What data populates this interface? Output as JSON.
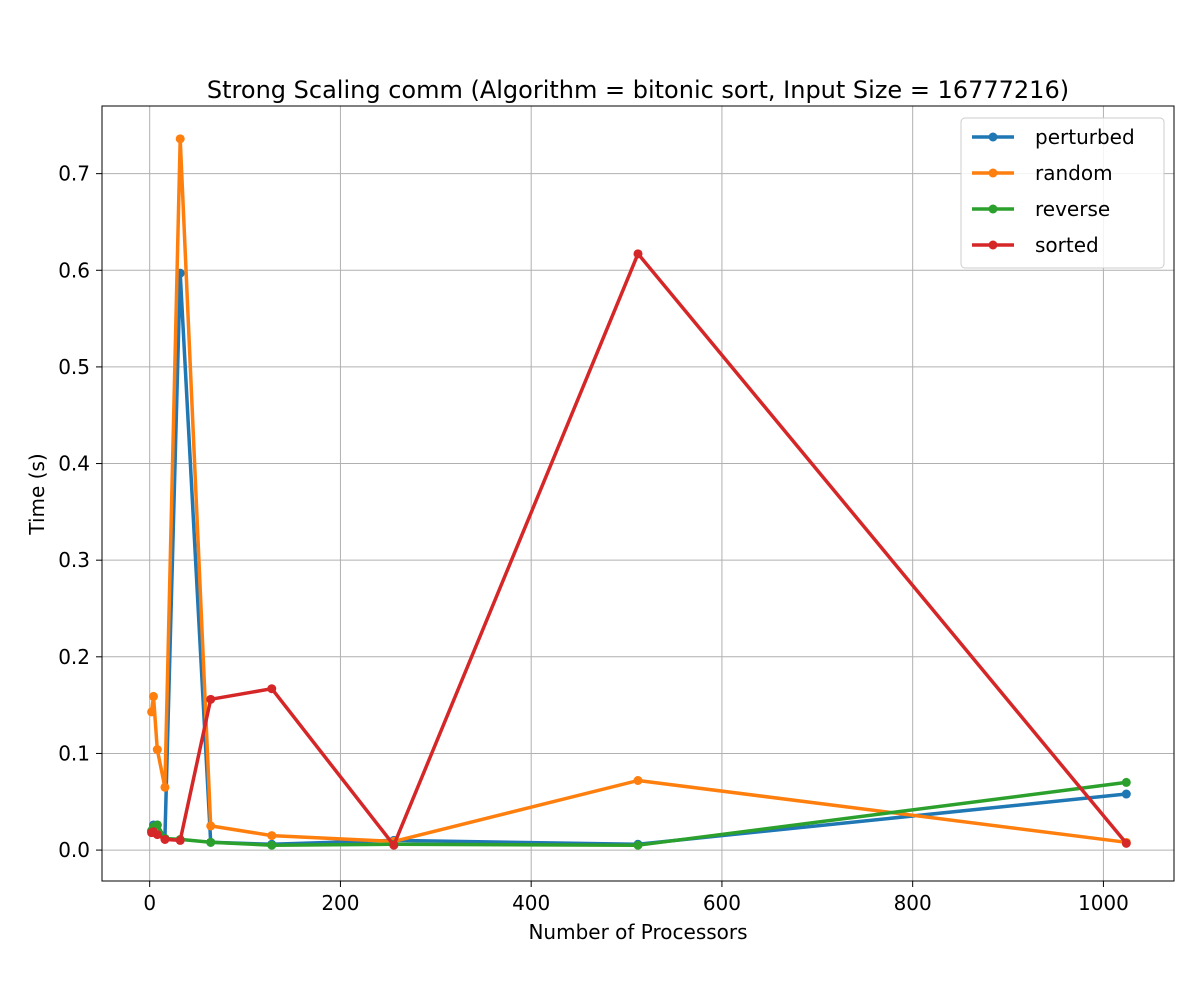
{
  "chart_data": {
    "type": "line",
    "title": "Strong Scaling comm (Algorithm = bitonic sort, Input Size = 16777216)",
    "xlabel": "Number of Processors",
    "ylabel": "Time (s)",
    "xlim": [
      -50,
      1074
    ],
    "ylim": [
      -0.032,
      0.77
    ],
    "xticks": [
      0,
      200,
      400,
      600,
      800,
      1000
    ],
    "yticks": [
      0.0,
      0.1,
      0.2,
      0.3,
      0.4,
      0.5,
      0.6,
      0.7
    ],
    "grid": true,
    "legend_position": "top-right",
    "series": [
      {
        "name": "perturbed",
        "color": "#1f77b4",
        "x": [
          2,
          4,
          8,
          16,
          32,
          64,
          128,
          256,
          512,
          1024
        ],
        "y": [
          0.02,
          0.026,
          0.026,
          0.012,
          0.597,
          0.008,
          0.006,
          0.01,
          0.006,
          0.058
        ]
      },
      {
        "name": "random",
        "color": "#ff7f0e",
        "x": [
          2,
          4,
          8,
          16,
          32,
          64,
          128,
          256,
          512,
          1024
        ],
        "y": [
          0.143,
          0.159,
          0.104,
          0.065,
          0.736,
          0.025,
          0.015,
          0.009,
          0.072,
          0.008
        ]
      },
      {
        "name": "reverse",
        "color": "#2ca02c",
        "x": [
          2,
          4,
          8,
          16,
          32,
          64,
          128,
          256,
          512,
          1024
        ],
        "y": [
          0.02,
          0.024,
          0.026,
          0.012,
          0.011,
          0.008,
          0.005,
          0.006,
          0.005,
          0.07
        ]
      },
      {
        "name": "sorted",
        "color": "#d62728",
        "x": [
          2,
          4,
          8,
          16,
          32,
          64,
          128,
          256,
          512,
          1024
        ],
        "y": [
          0.018,
          0.019,
          0.016,
          0.011,
          0.01,
          0.156,
          0.167,
          0.005,
          0.617,
          0.007
        ]
      }
    ]
  }
}
